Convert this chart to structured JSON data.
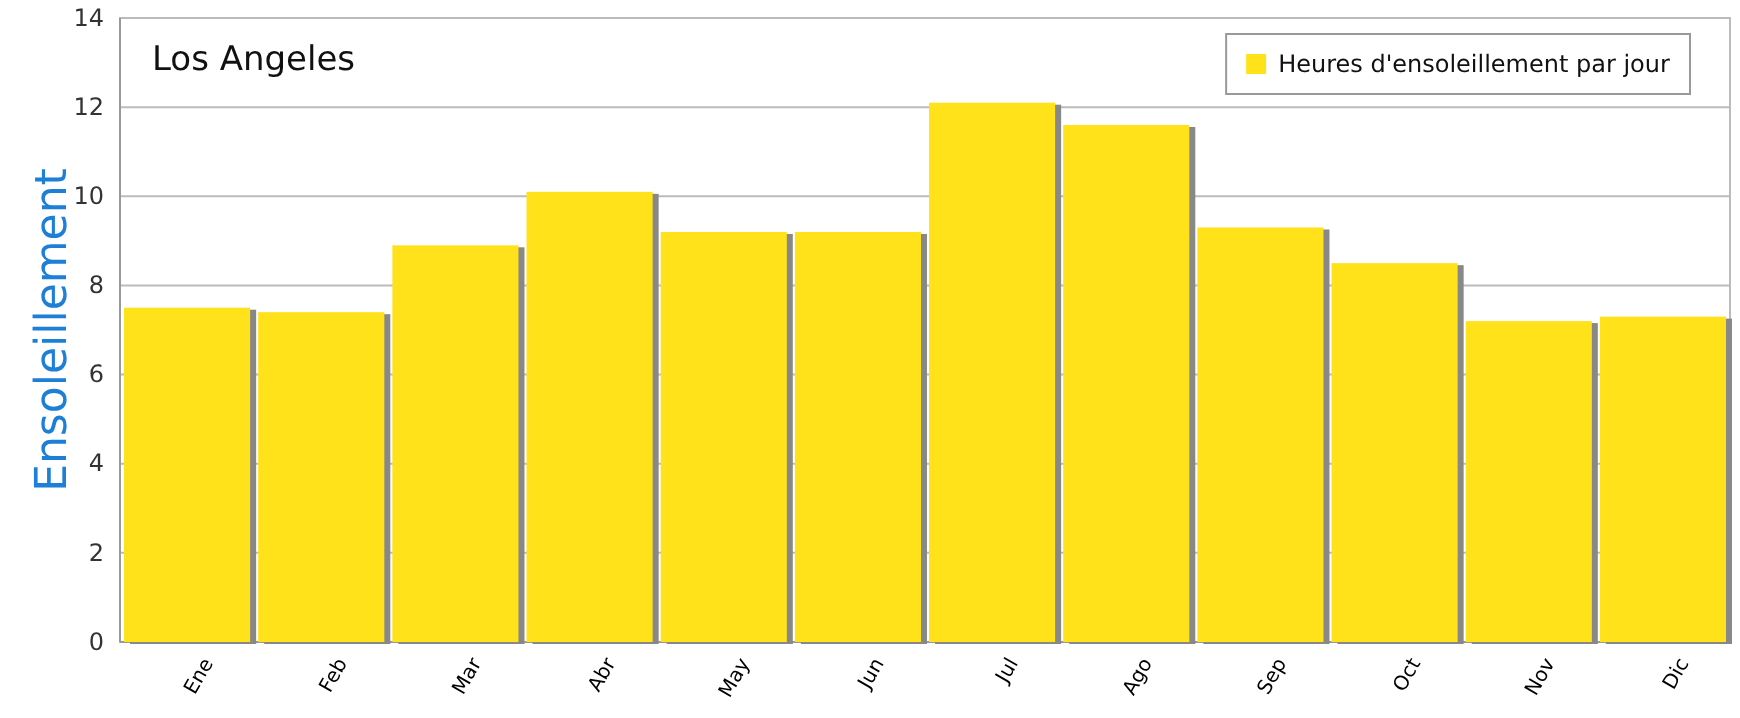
{
  "chart_data": {
    "type": "bar",
    "title": "Los Angeles",
    "ylabel": "Ensoleillement",
    "categories": [
      "Ene",
      "Feb",
      "Mar",
      "Abr",
      "May",
      "Jun",
      "Jul",
      "Ago",
      "Sep",
      "Oct",
      "Nov",
      "Dic"
    ],
    "series": [
      {
        "name": "Heures d'ensoleillement par jour",
        "color": "#ffe21a",
        "values": [
          7.5,
          7.4,
          8.9,
          10.1,
          9.2,
          9.2,
          12.1,
          11.6,
          9.3,
          8.5,
          7.2,
          7.3
        ]
      }
    ],
    "ylim": [
      0,
      14
    ],
    "yticks": [
      0,
      2,
      4,
      6,
      8,
      10,
      12,
      14
    ],
    "grid": "y",
    "legend": "top right"
  }
}
